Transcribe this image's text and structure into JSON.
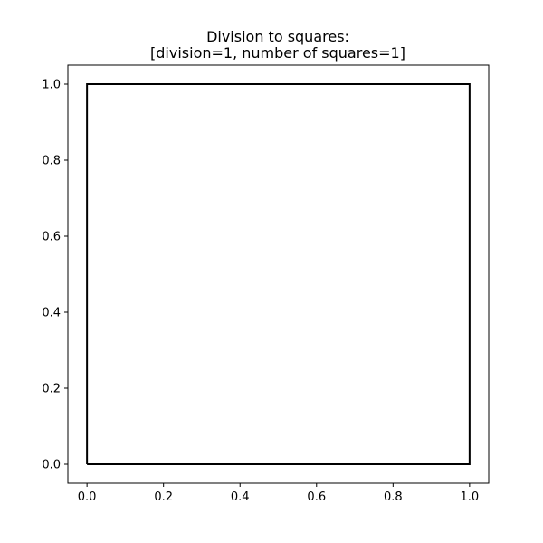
{
  "chart_data": {
    "type": "line",
    "title_lines": [
      "Division to squares:",
      "[division=1, number of squares=1]"
    ],
    "xlabel": "",
    "ylabel": "",
    "xlim": [
      -0.05,
      1.05
    ],
    "ylim": [
      -0.05,
      1.05
    ],
    "x_ticks": [
      0.0,
      0.2,
      0.4,
      0.6,
      0.8,
      1.0
    ],
    "x_tick_labels": [
      "0.0",
      "0.2",
      "0.4",
      "0.6",
      "0.8",
      "1.0"
    ],
    "y_ticks": [
      0.0,
      0.2,
      0.4,
      0.6,
      0.8,
      1.0
    ],
    "y_tick_labels": [
      "0.0",
      "0.2",
      "0.4",
      "0.6",
      "0.8",
      "1.0"
    ],
    "grid": false,
    "legend": "none",
    "squares": [
      {
        "x": [
          0.0,
          1.0,
          1.0,
          0.0,
          0.0
        ],
        "y": [
          0.0,
          0.0,
          1.0,
          1.0,
          0.0
        ],
        "color": "#000000"
      }
    ]
  }
}
